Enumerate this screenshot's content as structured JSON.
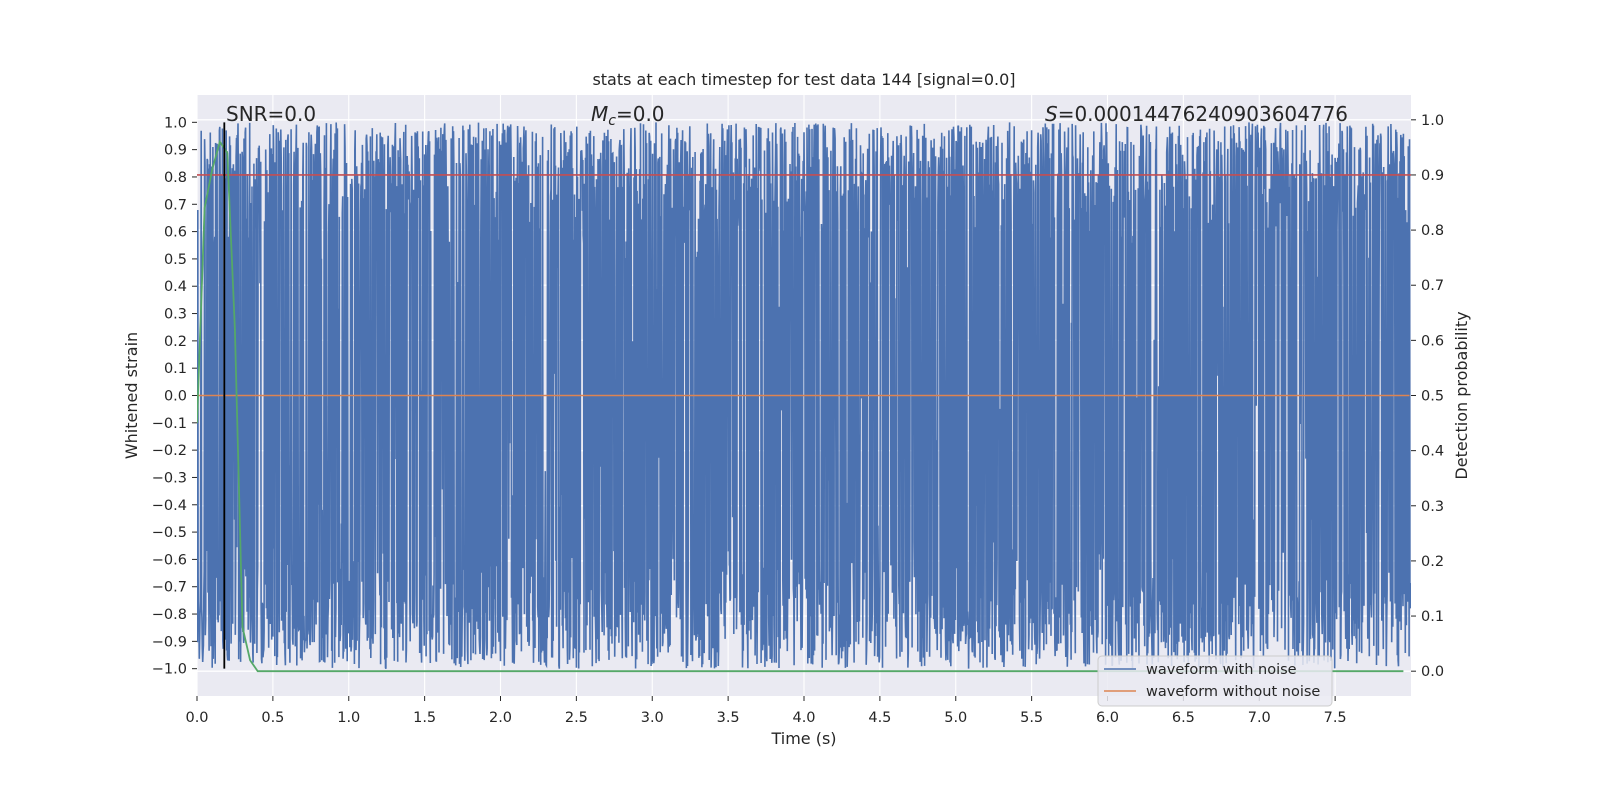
{
  "chart_data": {
    "type": "line",
    "title": "stats at each timestep for test data 144 [signal=0.0]",
    "xlabel": "Time (s)",
    "ylabel": "Whitened strain",
    "y2label": "Detection probability",
    "xlim": [
      0.0,
      8.0
    ],
    "ylim": [
      -1.1,
      1.1
    ],
    "y2lim": [
      -0.045,
      1.045
    ],
    "x_ticks": [
      "0.0",
      "0.5",
      "1.0",
      "1.5",
      "2.0",
      "2.5",
      "3.0",
      "3.5",
      "4.0",
      "4.5",
      "5.0",
      "5.5",
      "6.0",
      "6.5",
      "7.0",
      "7.5"
    ],
    "y_ticks": [
      "1.0",
      "0.9",
      "0.8",
      "0.7",
      "0.6",
      "0.5",
      "0.4",
      "0.3",
      "0.2",
      "0.1",
      "0.0",
      "−0.1",
      "−0.2",
      "−0.3",
      "−0.4",
      "−0.5",
      "−0.6",
      "−0.7",
      "−0.8",
      "−0.9",
      "−1.0"
    ],
    "y2_ticks": [
      "1.0",
      "0.9",
      "0.8",
      "0.7",
      "0.6",
      "0.5",
      "0.4",
      "0.3",
      "0.2",
      "0.1",
      "0.0"
    ],
    "annotations": {
      "snr": "SNR=0.0",
      "mc_symbol": "M",
      "mc_sub": "c",
      "mc_value": "=0.0",
      "s_symbol": "S",
      "s_value": "=0.00014476240903604776"
    },
    "grid": true,
    "legend_position": "lower right",
    "series": [
      {
        "name": "waveform with noise",
        "color": "#4c72b0",
        "axis": "left",
        "description_range": [
          -1.0,
          1.0
        ],
        "samples_per_second": 400
      },
      {
        "name": "waveform without noise",
        "color": "#dd8452",
        "axis": "left",
        "x": [
          0.0,
          7.99
        ],
        "y": [
          0.0,
          0.0
        ]
      },
      {
        "name": "",
        "color": "#55a868",
        "axis": "right",
        "x": [
          0.0,
          0.05,
          0.1,
          0.15,
          0.2,
          0.25,
          0.3,
          0.35,
          0.4,
          1.0,
          2.0,
          3.0,
          4.0,
          5.0,
          6.0,
          7.0,
          7.95
        ],
        "y": [
          0.45,
          0.84,
          0.91,
          0.96,
          0.94,
          0.62,
          0.08,
          0.02,
          0.0,
          0.0,
          0.0,
          0.0,
          0.0,
          0.0,
          0.0,
          0.0,
          0.0
        ]
      },
      {
        "name": "",
        "color": "#c44e52",
        "axis": "right",
        "x": [
          0.0,
          8.0
        ],
        "y": [
          0.9,
          0.9
        ]
      }
    ],
    "vertical_lines": [
      {
        "x": 0.18,
        "color": "#000000"
      }
    ]
  },
  "legend": {
    "with_noise": "waveform with noise",
    "without_noise": "waveform without noise"
  },
  "colors": {
    "plot_bg": "#eaeaf2",
    "grid": "#ffffff",
    "noise": "#4c72b0",
    "clean": "#dd8452",
    "probability": "#55a868",
    "threshold": "#c44e52"
  }
}
